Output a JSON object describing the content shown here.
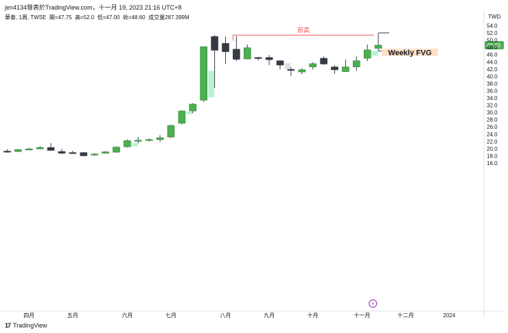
{
  "header": {
    "line1": "jen4134發表於TradingView.com，十一月 19, 2023 21:16 UTC+8",
    "symbol": "華泰, 1周, TWSE",
    "open_label": "開=47.75",
    "high_label": "高=52.0",
    "low_label": "低=47.00",
    "close_label": "收=48.60",
    "volume_label": "成交量287.399M"
  },
  "currency": "TWD",
  "footer": {
    "logo_text": "17",
    "brand": "TradingView"
  },
  "colors": {
    "up": "#4caf50",
    "down": "#363a45",
    "fvg": "#b9f2cf",
    "fvg_gray": "#e0e0e0",
    "prev_high": "#ef5350",
    "weekly_fvg_bg": "#fde0c5",
    "price_tag": "#4caf50"
  },
  "chart_data": {
    "type": "candlestick",
    "y_ticks": [
      "54.0",
      "52.0",
      "50.0",
      "48.0",
      "46.0",
      "44.0",
      "42.0",
      "40.0",
      "38.0",
      "36.0",
      "34.0",
      "32.0",
      "30.0",
      "28.0",
      "26.0",
      "24.0",
      "22.0",
      "20.0",
      "18.0",
      "16.0"
    ],
    "ylim": [
      14.5,
      55.2
    ],
    "x_ticks": [
      "四月",
      "五月",
      "六月",
      "七月",
      "八月",
      "九月",
      "十月",
      "十一月",
      "十二月",
      "2024"
    ],
    "last_price": "48.60",
    "annotations": {
      "prev_high": "前高",
      "weekly_fvg": "Weekly FVG"
    },
    "candles": [
      {
        "o": 19.3,
        "h": 19.8,
        "l": 18.9,
        "c": 19.0
      },
      {
        "o": 19.2,
        "h": 19.9,
        "l": 19.0,
        "c": 19.7
      },
      {
        "o": 19.8,
        "h": 20.2,
        "l": 19.6,
        "c": 19.9
      },
      {
        "o": 19.9,
        "h": 20.7,
        "l": 19.8,
        "c": 20.3
      },
      {
        "o": 20.3,
        "h": 21.5,
        "l": 19.4,
        "c": 19.5
      },
      {
        "o": 19.2,
        "h": 19.9,
        "l": 18.4,
        "c": 18.7
      },
      {
        "o": 18.9,
        "h": 19.4,
        "l": 18.6,
        "c": 18.8
      },
      {
        "o": 18.9,
        "h": 19.1,
        "l": 17.9,
        "c": 18.0
      },
      {
        "o": 18.2,
        "h": 18.7,
        "l": 18.0,
        "c": 18.5
      },
      {
        "o": 18.7,
        "h": 19.3,
        "l": 18.6,
        "c": 19.1
      },
      {
        "o": 19.0,
        "h": 20.6,
        "l": 18.9,
        "c": 20.4
      },
      {
        "o": 20.5,
        "h": 22.5,
        "l": 20.3,
        "c": 22.2
      },
      {
        "o": 22.2,
        "h": 23.2,
        "l": 21.5,
        "c": 22.3
      },
      {
        "o": 22.4,
        "h": 22.8,
        "l": 22.0,
        "c": 22.5
      },
      {
        "o": 22.5,
        "h": 23.7,
        "l": 21.9,
        "c": 23.0
      },
      {
        "o": 23.2,
        "h": 26.6,
        "l": 22.9,
        "c": 26.4
      },
      {
        "o": 27.0,
        "h": 30.6,
        "l": 26.7,
        "c": 30.4
      },
      {
        "o": 30.4,
        "h": 32.6,
        "l": 29.8,
        "c": 32.3
      },
      {
        "o": 33.4,
        "h": 48.2,
        "l": 32.9,
        "c": 48.2
      },
      {
        "o": 51.0,
        "h": 51.4,
        "l": 36.8,
        "c": 47.2
      },
      {
        "o": 49.1,
        "h": 51.0,
        "l": 43.4,
        "c": 46.8
      },
      {
        "o": 47.5,
        "h": 51.1,
        "l": 44.2,
        "c": 44.7
      },
      {
        "o": 44.8,
        "h": 48.8,
        "l": 44.7,
        "c": 47.9
      },
      {
        "o": 45.2,
        "h": 45.4,
        "l": 44.4,
        "c": 44.9
      },
      {
        "o": 45.2,
        "h": 45.9,
        "l": 43.1,
        "c": 44.6
      },
      {
        "o": 44.3,
        "h": 44.4,
        "l": 41.9,
        "c": 43.1
      },
      {
        "o": 41.9,
        "h": 42.5,
        "l": 40.1,
        "c": 41.8
      },
      {
        "o": 41.2,
        "h": 42.2,
        "l": 40.6,
        "c": 41.8
      },
      {
        "o": 42.6,
        "h": 43.9,
        "l": 41.9,
        "c": 43.5
      },
      {
        "o": 45.0,
        "h": 45.5,
        "l": 43.2,
        "c": 43.4
      },
      {
        "o": 42.6,
        "h": 43.0,
        "l": 40.7,
        "c": 41.8
      },
      {
        "o": 41.3,
        "h": 44.6,
        "l": 41.2,
        "c": 42.6
      },
      {
        "o": 42.6,
        "h": 45.5,
        "l": 41.5,
        "c": 44.3
      },
      {
        "o": 45.0,
        "h": 48.8,
        "l": 44.2,
        "c": 47.3
      },
      {
        "o": 47.75,
        "h": 52.0,
        "l": 47.0,
        "c": 48.6
      }
    ]
  }
}
